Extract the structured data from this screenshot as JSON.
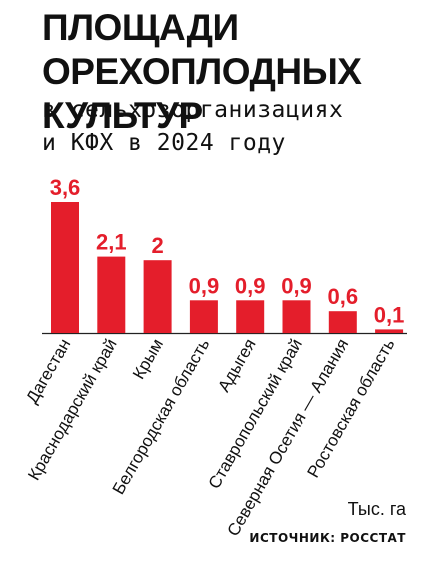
{
  "title_lines": [
    "ПЛОЩАДИ",
    "ОРЕХОПЛОДНЫХ КУЛЬТУР"
  ],
  "subtitle_lines": [
    "в сельхозорганизациях",
    "и КФХ в 2024 году"
  ],
  "unit": "Тыс. га",
  "source": "ИСТОЧНИК: РОССТАТ",
  "colors": {
    "bar": "#e41e2b",
    "value_label": "#e41e2b",
    "text": "#111111"
  },
  "chart_data": {
    "type": "bar",
    "title": "ПЛОЩАДИ ОРЕХОПЛОДНЫХ КУЛЬТУР",
    "subtitle": "в сельхозорганизациях и КФХ в 2024 году",
    "ylabel": "Тыс. га",
    "categories": [
      "Дагестан",
      "Краснодарский край",
      "Крым",
      "Белгородская область",
      "Адыгея",
      "Ставропольский край",
      "Северная Осетия — Алания",
      "Ростовская область"
    ],
    "values": [
      3.6,
      2.1,
      2,
      0.9,
      0.9,
      0.9,
      0.6,
      0.1
    ],
    "value_labels": [
      "3,6",
      "2,1",
      "2",
      "0,9",
      "0,9",
      "0,9",
      "0,6",
      "0,1"
    ],
    "ylim": [
      0,
      3.6
    ],
    "grid": false,
    "legend": "none"
  }
}
